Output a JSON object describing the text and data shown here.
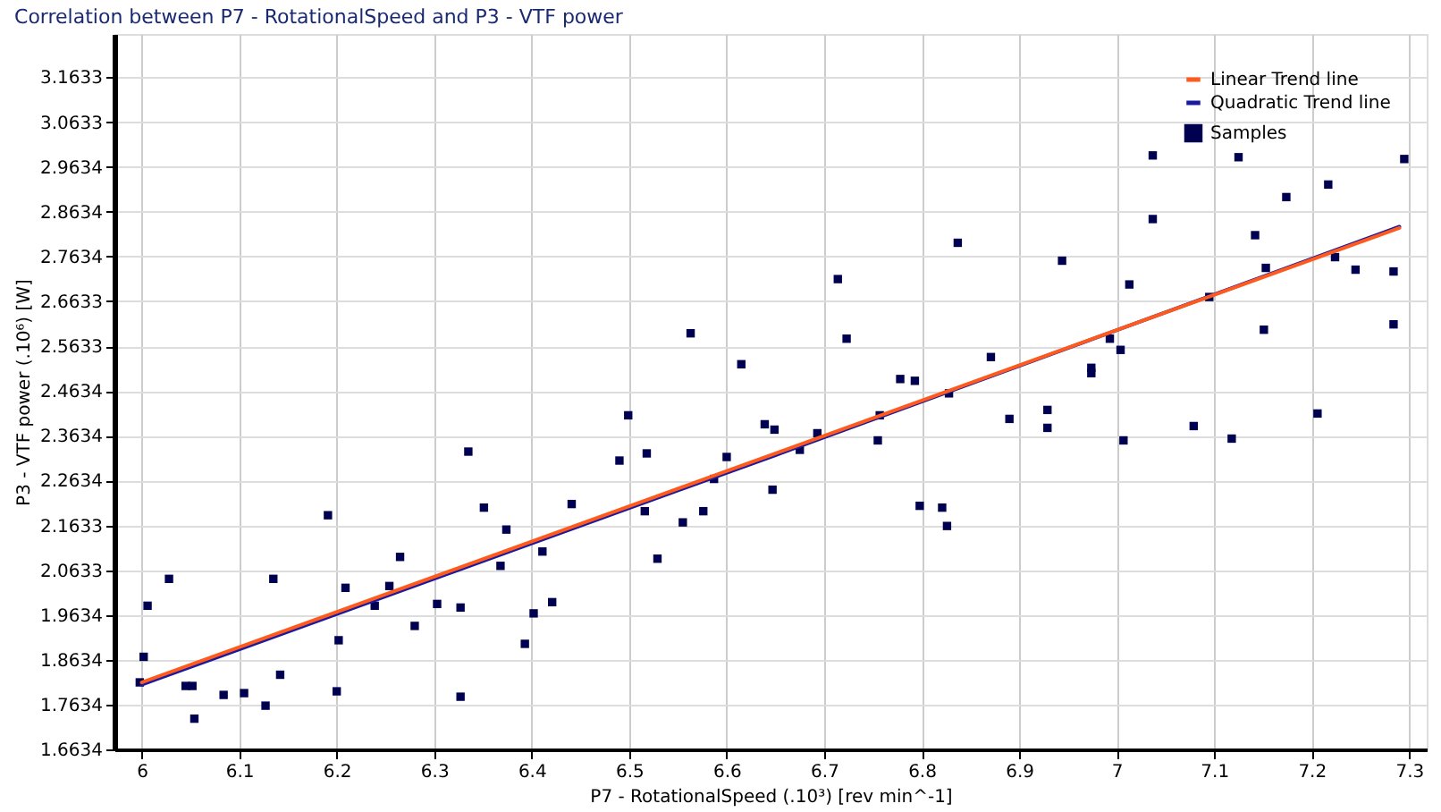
{
  "chart_data": {
    "type": "scatter",
    "title": "Correlation between P7 - RotationalSpeed and P3 - VTF power",
    "xlabel": "P7 - RotationalSpeed  (.10³)  [rev min^-1]",
    "ylabel": "P3 - VTF power  (.10⁶)  [W]",
    "xlim": [
      5.972,
      7.318
    ],
    "xticks": [
      6,
      6.1,
      6.2,
      6.3,
      6.4,
      6.5,
      6.6,
      6.7,
      6.8,
      6.9,
      7,
      7.1,
      7.2,
      7.3
    ],
    "ylim": [
      1.6634,
      3.26
    ],
    "yticks": [
      1.6634,
      1.7634,
      1.8634,
      1.9634,
      2.0633,
      2.1633,
      2.2634,
      2.3634,
      2.4634,
      2.5633,
      2.6633,
      2.7634,
      2.8634,
      2.9634,
      3.0633,
      3.1633
    ],
    "grid": true,
    "legend": "top right",
    "series": [
      {
        "name": "Linear Trend line",
        "type": "line",
        "color": "#ff5a1e",
        "x": [
          6.0,
          7.29
        ],
        "values": [
          1.813,
          2.827
        ]
      },
      {
        "name": "Quadratic Trend line",
        "type": "line",
        "color": "#1a1aa0",
        "x": [
          6.0,
          6.65,
          7.29
        ],
        "values": [
          1.808,
          2.32,
          2.83
        ]
      },
      {
        "name": "Samples",
        "type": "scatter",
        "color": "#000050",
        "marker": "square",
        "x": [
          5.998,
          6.002,
          6.006,
          6.028,
          6.045,
          6.052,
          6.054,
          6.084,
          6.105,
          6.127,
          6.135,
          6.142,
          6.191,
          6.2,
          6.202,
          6.209,
          6.239,
          6.254,
          6.265,
          6.28,
          6.303,
          6.327,
          6.327,
          6.335,
          6.351,
          6.368,
          6.374,
          6.393,
          6.402,
          6.411,
          6.421,
          6.441,
          6.49,
          6.499,
          6.516,
          6.518,
          6.529,
          6.555,
          6.563,
          6.576,
          6.587,
          6.6,
          6.615,
          6.639,
          6.649,
          6.647,
          6.675,
          6.693,
          6.714,
          6.723,
          6.755,
          6.757,
          6.778,
          6.793,
          6.798,
          6.821,
          6.826,
          6.828,
          6.837,
          6.871,
          6.89,
          6.929,
          6.929,
          6.944,
          6.974,
          6.974,
          6.993,
          7.004,
          7.007,
          7.013,
          7.037,
          7.037,
          7.079,
          7.095,
          7.118,
          7.125,
          7.142,
          7.151,
          7.153,
          7.174,
          7.206,
          7.217,
          7.224,
          7.245,
          7.284,
          7.284,
          7.295
        ],
        "values": [
          1.813,
          1.87,
          1.984,
          2.044,
          1.805,
          1.805,
          1.732,
          1.785,
          1.789,
          1.761,
          2.044,
          1.83,
          2.186,
          1.793,
          1.907,
          2.024,
          1.984,
          2.028,
          2.093,
          1.939,
          1.988,
          1.781,
          1.98,
          2.328,
          2.203,
          2.073,
          2.154,
          1.899,
          1.967,
          2.105,
          1.992,
          2.211,
          2.308,
          2.409,
          2.195,
          2.324,
          2.089,
          2.17,
          2.592,
          2.195,
          2.267,
          2.316,
          2.523,
          2.389,
          2.377,
          2.243,
          2.332,
          2.369,
          2.713,
          2.58,
          2.353,
          2.409,
          2.49,
          2.486,
          2.207,
          2.203,
          2.162,
          2.458,
          2.794,
          2.539,
          2.401,
          2.421,
          2.381,
          2.754,
          2.515,
          2.503,
          2.58,
          2.555,
          2.353,
          2.701,
          2.989,
          2.847,
          2.385,
          2.673,
          2.357,
          2.985,
          2.811,
          2.6,
          2.738,
          2.896,
          2.413,
          2.924,
          2.762,
          2.734,
          2.73,
          2.612,
          2.981
        ]
      }
    ]
  }
}
